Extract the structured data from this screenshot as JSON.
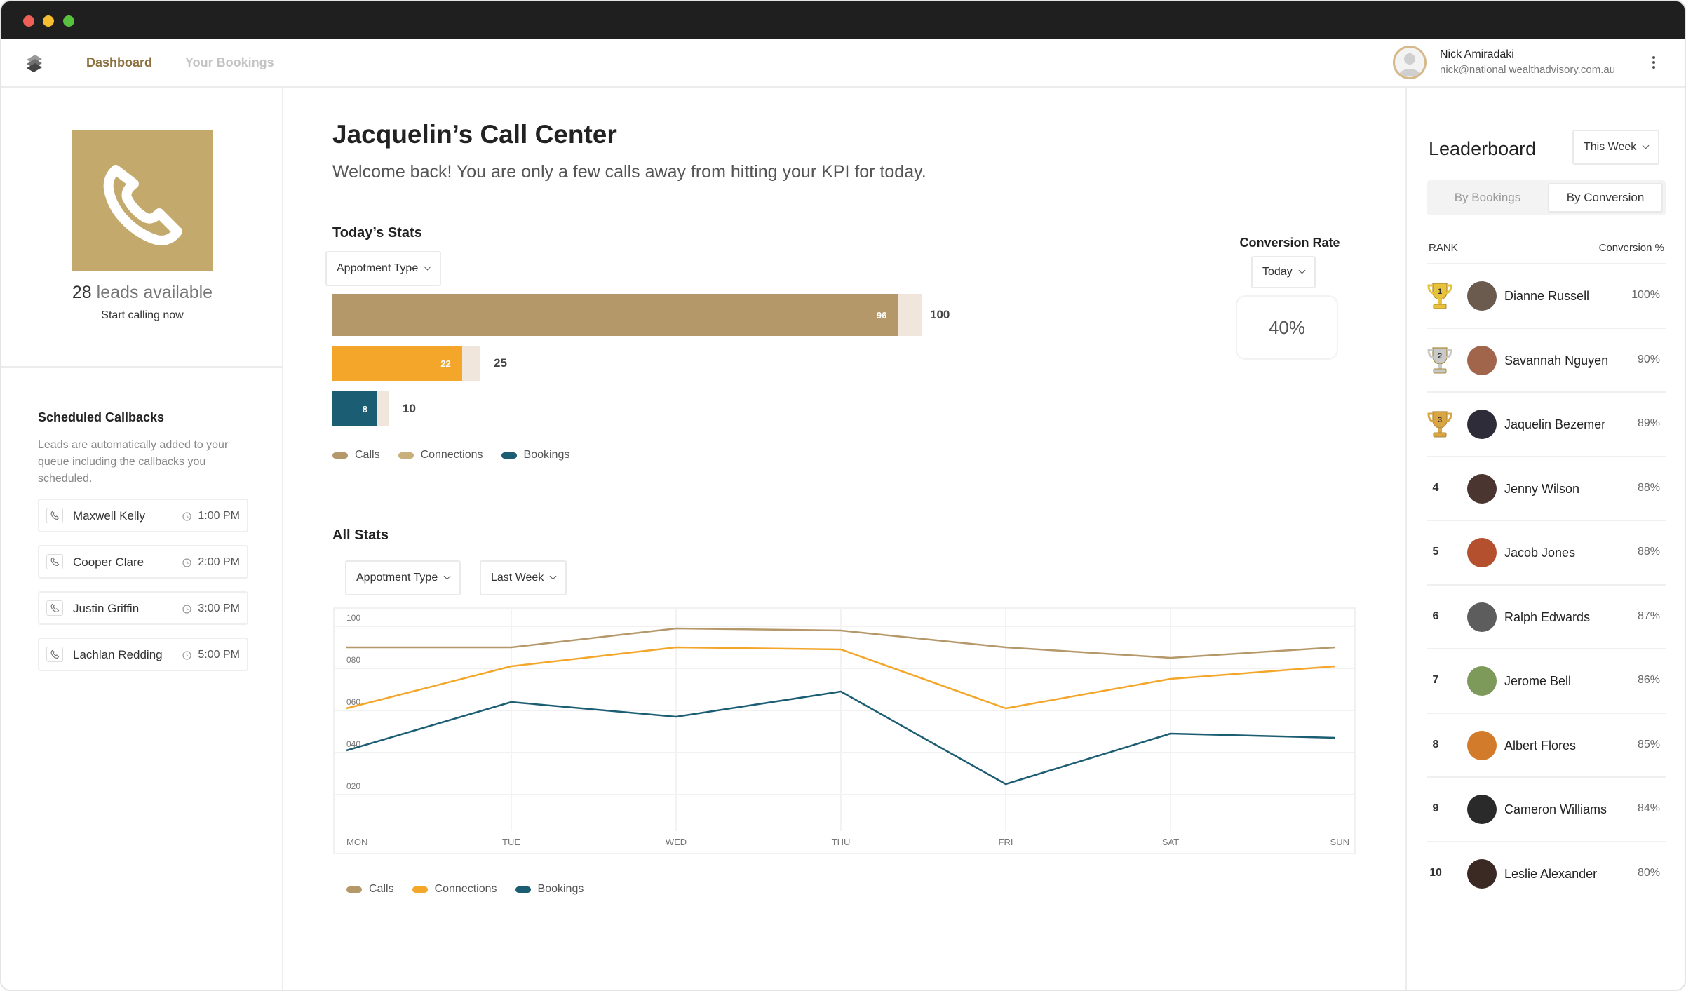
{
  "nav": {
    "dashboard": "Dashboard",
    "bookings": "Your Bookings"
  },
  "user": {
    "name": "Nick Amiradaki",
    "email": "nick@national wealthadvisory.com.au"
  },
  "left": {
    "leads_count": "28",
    "leads_text": "leads available",
    "start_calling": "Start calling now",
    "scheduled_title": "Scheduled Callbacks",
    "scheduled_desc": "Leads are automatically added to your queue including the callbacks you scheduled.",
    "callbacks": [
      {
        "name": "Maxwell Kelly",
        "time": "1:00 PM"
      },
      {
        "name": "Cooper Clare",
        "time": "2:00 PM"
      },
      {
        "name": "Justin Griffin",
        "time": "3:00 PM"
      },
      {
        "name": "Lachlan Redding",
        "time": "5:00 PM"
      }
    ]
  },
  "main": {
    "title": "Jacquelin’s Call Center",
    "welcome": "Welcome back! You are only a few calls away from hitting your KPI for today.",
    "today_stats_label": "Today’s Stats",
    "today_dropdown": "Appotment Type",
    "conversion_title": "Conversion Rate",
    "conversion_dropdown": "Today",
    "conversion_value": "40%",
    "all_stats_label": "All Stats",
    "all_dropdown_type": "Appotment Type",
    "all_dropdown_period": "Last Week"
  },
  "colors": {
    "calls": "#b5986a",
    "connections": "#f4a62a",
    "bookings": "#1b5d72",
    "track": "#f0e6dc",
    "accent": "#8b6f3d"
  },
  "chart_data": [
    {
      "type": "bar",
      "orientation": "horizontal",
      "series": [
        {
          "name": "Calls",
          "value": 96,
          "max": 100
        },
        {
          "name": "Connections",
          "value": 22,
          "max": 25
        },
        {
          "name": "Bookings",
          "value": 8,
          "max": 10
        }
      ],
      "legend": [
        "Calls",
        "Connections",
        "Bookings"
      ]
    },
    {
      "type": "line",
      "x": [
        "MON",
        "TUE",
        "WED",
        "THU",
        "FRI",
        "SAT",
        "SUN"
      ],
      "y_ticks": [
        "100",
        "080",
        "060",
        "040",
        "020"
      ],
      "ylim": [
        0,
        100
      ],
      "grid": true,
      "series": [
        {
          "name": "Calls",
          "values": [
            90,
            90,
            99,
            98,
            90,
            85,
            90
          ]
        },
        {
          "name": "Connections",
          "values": [
            61,
            81,
            90,
            89,
            61,
            75,
            81
          ]
        },
        {
          "name": "Bookings",
          "values": [
            41,
            64,
            57,
            69,
            25,
            49,
            47
          ]
        }
      ],
      "legend": [
        "Calls",
        "Connections",
        "Bookings"
      ]
    }
  ],
  "leaderboard": {
    "title": "Leaderboard",
    "period": "This Week",
    "tab_bookings": "By Bookings",
    "tab_conversion": "By Conversion",
    "col_rank": "RANK",
    "col_conversion": "Conversion %",
    "rows": [
      {
        "rank": "1",
        "name": "Dianne Russell",
        "pct": "100%",
        "avatar": "#6b5a4e"
      },
      {
        "rank": "2",
        "name": "Savannah Nguyen",
        "pct": "90%",
        "avatar": "#a0654a"
      },
      {
        "rank": "3",
        "name": "Jaquelin Bezemer",
        "pct": "89%",
        "avatar": "#2f2c3a"
      },
      {
        "rank": "4",
        "name": "Jenny Wilson",
        "pct": "88%",
        "avatar": "#4a3530"
      },
      {
        "rank": "5",
        "name": "Jacob Jones",
        "pct": "88%",
        "avatar": "#b5502f"
      },
      {
        "rank": "6",
        "name": "Ralph Edwards",
        "pct": "87%",
        "avatar": "#5d5d5d"
      },
      {
        "rank": "7",
        "name": "Jerome Bell",
        "pct": "86%",
        "avatar": "#7d9a5a"
      },
      {
        "rank": "8",
        "name": "Albert Flores",
        "pct": "85%",
        "avatar": "#d27b2a"
      },
      {
        "rank": "9",
        "name": "Cameron Williams",
        "pct": "84%",
        "avatar": "#2a2a2a"
      },
      {
        "rank": "10",
        "name": "Leslie Alexander",
        "pct": "80%",
        "avatar": "#3b2a24"
      }
    ]
  }
}
